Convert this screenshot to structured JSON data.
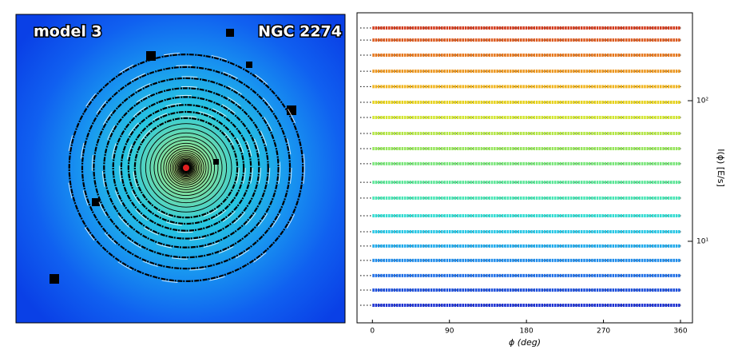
{
  "image": {
    "left_label": "model 3",
    "right_label": "NGC 2274"
  },
  "chart_data": {
    "type": "line",
    "log_y": true,
    "x_label": "ϕ (deg)",
    "y_label": "I(ϕ) [E/s]",
    "x": [
      0,
      30,
      60,
      90,
      120,
      150,
      180,
      210,
      240,
      270,
      300,
      330,
      360
    ],
    "xlim": [
      -18,
      374
    ],
    "xticks": [
      0,
      90,
      180,
      270,
      360
    ],
    "ylim": [
      2.63,
      422
    ],
    "yticks": [
      {
        "value": 100,
        "label": "10²"
      },
      {
        "value": 10,
        "label": "10¹"
      }
    ],
    "series": [
      {
        "color": "#d23c1e",
        "values": [
          329,
          329,
          329,
          329,
          329,
          329,
          329,
          329,
          329,
          329,
          329,
          329,
          329
        ]
      },
      {
        "color": "#dc5a1e",
        "values": [
          270,
          270,
          270,
          270,
          270,
          270,
          270,
          270,
          270,
          270,
          270,
          270,
          270
        ]
      },
      {
        "color": "#e6781e",
        "values": [
          211,
          211,
          211,
          211,
          211,
          211,
          211,
          211,
          211,
          211,
          211,
          211,
          211
        ]
      },
      {
        "color": "#ec961e",
        "values": [
          162,
          162,
          162,
          162,
          162,
          162,
          162,
          162,
          162,
          162,
          162,
          162,
          162
        ]
      },
      {
        "color": "#f0b41e",
        "values": [
          126,
          126,
          126,
          126,
          126,
          126,
          126,
          126,
          126,
          126,
          126,
          126,
          126
        ]
      },
      {
        "color": "#e6d21e",
        "values": [
          97.4,
          97.4,
          97.4,
          97.4,
          97.4,
          97.4,
          97.4,
          97.4,
          97.4,
          97.4,
          97.4,
          97.4,
          97.4
        ]
      },
      {
        "color": "#d2e632",
        "values": [
          76,
          76,
          76,
          76,
          76,
          76,
          76,
          76,
          76,
          76,
          76,
          76,
          76
        ]
      },
      {
        "color": "#b4e646",
        "values": [
          58.5,
          58.5,
          58.5,
          58.5,
          58.5,
          58.5,
          58.5,
          58.5,
          58.5,
          58.5,
          58.5,
          58.5,
          58.5
        ]
      },
      {
        "color": "#96e65a",
        "values": [
          45.6,
          45.6,
          45.6,
          45.6,
          45.6,
          45.6,
          45.6,
          45.6,
          45.6,
          45.6,
          45.6,
          45.6,
          45.6
        ]
      },
      {
        "color": "#78e678",
        "values": [
          35.6,
          35.6,
          35.6,
          35.6,
          35.6,
          35.6,
          35.6,
          35.6,
          35.6,
          35.6,
          35.6,
          35.6,
          35.6
        ]
      },
      {
        "color": "#5ae696",
        "values": [
          26.3,
          26.3,
          26.3,
          26.3,
          26.3,
          26.3,
          26.3,
          26.3,
          26.3,
          26.3,
          26.3,
          26.3,
          26.3
        ]
      },
      {
        "color": "#46e6b4",
        "values": [
          20.3,
          20.3,
          20.3,
          20.3,
          20.3,
          20.3,
          20.3,
          20.3,
          20.3,
          20.3,
          20.3,
          20.3,
          20.3
        ]
      },
      {
        "color": "#32dcd2",
        "values": [
          15.2,
          15.2,
          15.2,
          15.2,
          15.2,
          15.2,
          15.2,
          15.2,
          15.2,
          15.2,
          15.2,
          15.2,
          15.2
        ]
      },
      {
        "color": "#28c8e6",
        "values": [
          11.7,
          11.7,
          11.7,
          11.7,
          11.7,
          11.7,
          11.7,
          11.7,
          11.7,
          11.7,
          11.7,
          11.7,
          11.7
        ]
      },
      {
        "color": "#1eaaeb",
        "values": [
          9.25,
          9.25,
          9.25,
          9.25,
          9.25,
          9.25,
          9.25,
          9.25,
          9.25,
          9.25,
          9.25,
          9.25,
          9.25
        ]
      },
      {
        "color": "#1e8ceb",
        "values": [
          7.31,
          7.31,
          7.31,
          7.31,
          7.31,
          7.31,
          7.31,
          7.31,
          7.31,
          7.31,
          7.31,
          7.31,
          7.31
        ]
      },
      {
        "color": "#1e6ee6",
        "values": [
          5.7,
          5.7,
          5.7,
          5.7,
          5.7,
          5.7,
          5.7,
          5.7,
          5.7,
          5.7,
          5.7,
          5.7,
          5.7
        ]
      },
      {
        "color": "#1e50dc",
        "values": [
          4.5,
          4.5,
          4.5,
          4.5,
          4.5,
          4.5,
          4.5,
          4.5,
          4.5,
          4.5,
          4.5,
          4.5,
          4.5
        ]
      },
      {
        "color": "#1e32d2",
        "values": [
          3.51,
          3.51,
          3.51,
          3.51,
          3.51,
          3.51,
          3.51,
          3.51,
          3.51,
          3.51,
          3.51,
          3.51,
          3.51
        ]
      }
    ]
  }
}
